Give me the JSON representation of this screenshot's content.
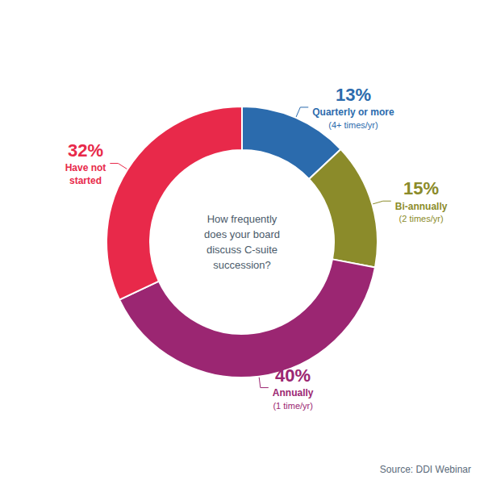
{
  "chart_data": {
    "type": "pie",
    "categories": [
      "Quarterly or more",
      "Bi-annually",
      "Annually",
      "Have not\nstarted"
    ],
    "sublabels": [
      "(4+ times/yr)",
      "(2 times/yr)",
      "(1 time/yr)",
      null
    ],
    "values": [
      13,
      15,
      40,
      32
    ],
    "value_labels": [
      "13%",
      "15%",
      "40%",
      "32%"
    ],
    "colors": [
      "#2B6BAD",
      "#8B8B2A",
      "#9B2672",
      "#E8294A"
    ],
    "center_text": "How frequently\ndoes your board\ndiscuss C-suite\nsuccession?",
    "source": "Source: DDI Webinar",
    "data_labels": true
  }
}
